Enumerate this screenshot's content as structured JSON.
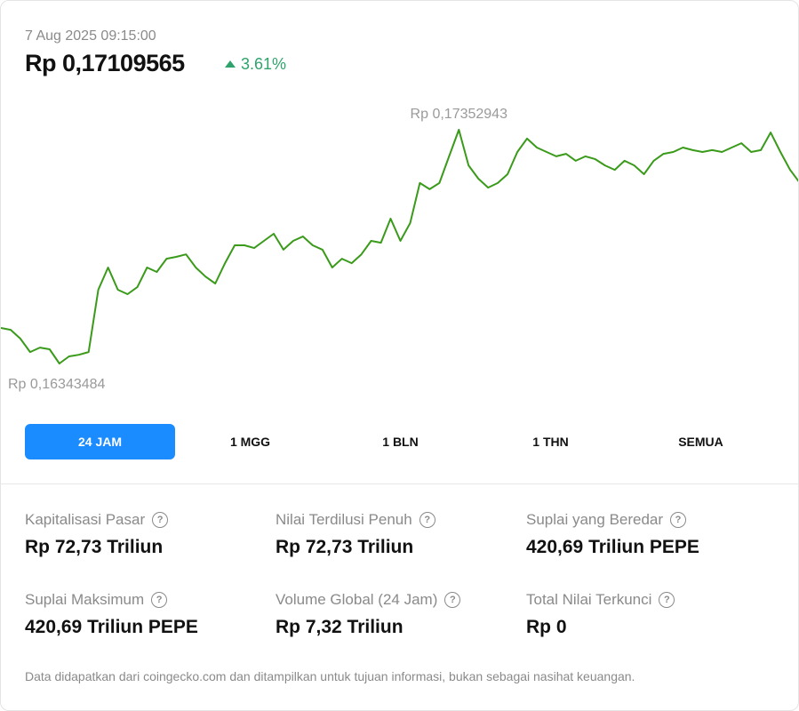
{
  "header": {
    "date": "7 Aug 2025 09:15:00",
    "price": "Rp 0,17109565",
    "change": "3.61%"
  },
  "chart_data": {
    "type": "line",
    "color": "#3a9a1a",
    "values": [
      0.16497,
      0.16489,
      0.16451,
      0.16393,
      0.16412,
      0.16405,
      0.16343484,
      0.16374,
      0.16381,
      0.16393,
      0.16662,
      0.16758,
      0.16662,
      0.16643,
      0.16673,
      0.16758,
      0.16739,
      0.16796,
      0.16804,
      0.16815,
      0.16758,
      0.16719,
      0.16689,
      0.16777,
      0.16854,
      0.16854,
      0.16842,
      0.16873,
      0.16904,
      0.16835,
      0.16873,
      0.16892,
      0.16854,
      0.16835,
      0.16758,
      0.16796,
      0.16777,
      0.16815,
      0.16873,
      0.16865,
      0.16969,
      0.16873,
      0.1695,
      0.17123,
      0.17096,
      0.17123,
      0.17238,
      0.17352943,
      0.17199,
      0.17142,
      0.17103,
      0.17123,
      0.17161,
      0.17257,
      0.17315,
      0.17276,
      0.17257,
      0.17238,
      0.17249,
      0.17219,
      0.17238,
      0.17226,
      0.17199,
      0.1718,
      0.17219,
      0.17199,
      0.17161,
      0.17219,
      0.17249,
      0.17257,
      0.17276,
      0.17265,
      0.17257,
      0.17265,
      0.17257,
      0.17276,
      0.17295,
      0.17257,
      0.17265,
      0.17341,
      0.17257,
      0.1718,
      0.17123
    ],
    "high": {
      "value": 0.17352943,
      "label": "Rp 0,17352943"
    },
    "low": {
      "value": 0.16343484,
      "label": "Rp 0,16343484"
    }
  },
  "tabs": [
    "24 JAM",
    "1 MGG",
    "1 BLN",
    "1 THN",
    "SEMUA"
  ],
  "stats": [
    {
      "label": "Kapitalisasi Pasar",
      "value": "Rp 72,73 Triliun"
    },
    {
      "label": "Nilai Terdilusi Penuh",
      "value": "Rp 72,73 Triliun"
    },
    {
      "label": "Suplai yang Beredar",
      "value": "420,69 Triliun PEPE"
    },
    {
      "label": "Suplai Maksimum",
      "value": "420,69 Triliun PEPE"
    },
    {
      "label": "Volume Global (24 Jam)",
      "value": "Rp 7,32 Triliun"
    },
    {
      "label": "Total Nilai Terkunci",
      "value": "Rp 0"
    }
  ],
  "footer": "Data didapatkan dari coingecko.com dan ditampilkan untuk tujuan informasi, bukan sebagai nasihat keuangan."
}
